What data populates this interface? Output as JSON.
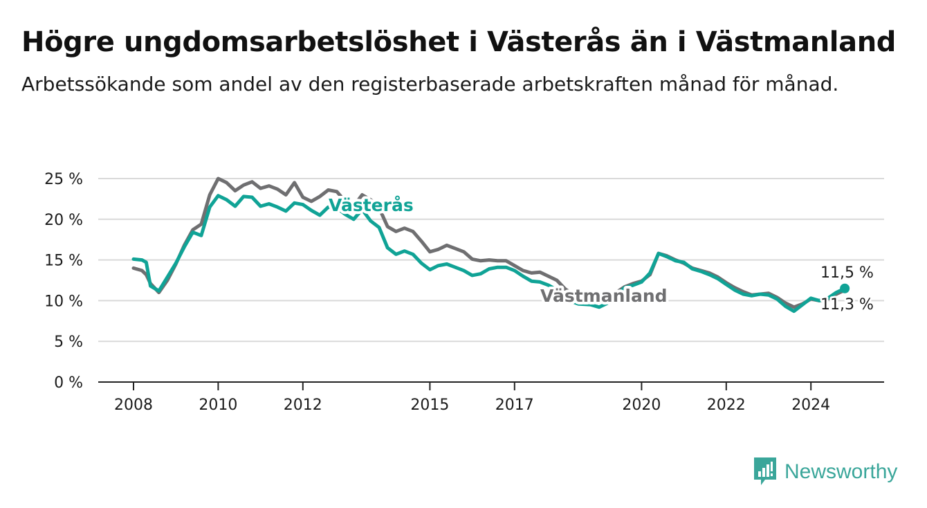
{
  "header": {
    "title": "Högre ungdomsarbetslöshet i Västerås än i Västmanland",
    "subtitle": "Arbetssökande som andel av den registerbaserade arbetskraften månad för månad."
  },
  "brand": {
    "name": "Newsworthy",
    "color": "#3aa69a",
    "icon": "newsworthy-logo-icon"
  },
  "colors": {
    "vasteras": "#10a396",
    "vastmanland": "#6f6f71",
    "grid": "#d9d9d9",
    "axis": "#222222"
  },
  "chart_data": {
    "type": "line",
    "title": "Högre ungdomsarbetslöshet i Västerås än i Västmanland",
    "subtitle": "Arbetssökande som andel av den registerbaserade arbetskraften månad för månad.",
    "xlabel": "",
    "ylabel": "",
    "ylim": [
      0,
      25
    ],
    "xlim": [
      2007.2,
      2025.9
    ],
    "y_ticks": [
      {
        "value": 0,
        "label": "0 %"
      },
      {
        "value": 5,
        "label": "5 %"
      },
      {
        "value": 10,
        "label": "10 %"
      },
      {
        "value": 15,
        "label": "15 %"
      },
      {
        "value": 20,
        "label": "20 %"
      },
      {
        "value": 25,
        "label": "25 %"
      }
    ],
    "x_ticks": [
      {
        "value": 2008,
        "label": "2008"
      },
      {
        "value": 2010,
        "label": "2010"
      },
      {
        "value": 2012,
        "label": "2012"
      },
      {
        "value": 2015,
        "label": "2015"
      },
      {
        "value": 2017,
        "label": "2017"
      },
      {
        "value": 2020,
        "label": "2020"
      },
      {
        "value": 2022,
        "label": "2022"
      },
      {
        "value": 2024,
        "label": "2024"
      }
    ],
    "grid": true,
    "legend": "inline labels",
    "end_labels": {
      "vasteras": "11,5 %",
      "vastmanland": "11,3 %"
    },
    "series": [
      {
        "name": "Västmanland",
        "key": "vastmanland",
        "color": "#6f6f71",
        "x": [
          2008.0,
          2008.2,
          2008.3,
          2008.4,
          2008.6,
          2008.8,
          2009.0,
          2009.2,
          2009.4,
          2009.6,
          2009.8,
          2010.0,
          2010.2,
          2010.4,
          2010.6,
          2010.8,
          2011.0,
          2011.2,
          2011.4,
          2011.6,
          2011.8,
          2012.0,
          2012.2,
          2012.4,
          2012.6,
          2012.8,
          2013.0,
          2013.2,
          2013.4,
          2013.6,
          2013.8,
          2014.0,
          2014.2,
          2014.4,
          2014.6,
          2014.8,
          2015.0,
          2015.2,
          2015.4,
          2015.6,
          2015.8,
          2016.0,
          2016.2,
          2016.4,
          2016.6,
          2016.8,
          2017.0,
          2017.2,
          2017.4,
          2017.6,
          2017.8,
          2018.0,
          2018.2,
          2018.5,
          2018.8,
          2019.0,
          2019.2,
          2019.4,
          2019.6,
          2019.8,
          2020.0,
          2020.2,
          2020.4,
          2020.6,
          2020.8,
          2021.0,
          2021.2,
          2021.4,
          2021.6,
          2021.8,
          2022.0,
          2022.2,
          2022.4,
          2022.6,
          2022.8,
          2023.0,
          2023.2,
          2023.4,
          2023.6,
          2023.8,
          2024.0,
          2024.2,
          2024.4,
          2024.6,
          2024.8
        ],
        "values": [
          14.0,
          13.7,
          13.2,
          12.1,
          11.0,
          12.5,
          14.5,
          16.8,
          18.7,
          19.4,
          23.0,
          25.0,
          24.5,
          23.5,
          24.2,
          24.6,
          23.8,
          24.1,
          23.7,
          23.0,
          24.5,
          22.7,
          22.2,
          22.8,
          23.6,
          23.4,
          22.2,
          21.6,
          23.0,
          22.4,
          21.4,
          19.1,
          18.5,
          18.9,
          18.5,
          17.3,
          16.0,
          16.3,
          16.8,
          16.4,
          16.0,
          15.1,
          14.9,
          15.0,
          14.9,
          14.9,
          14.3,
          13.7,
          13.4,
          13.5,
          13.0,
          12.5,
          11.4,
          10.4,
          10.0,
          9.9,
          10.4,
          11.0,
          11.7,
          12.1,
          12.4,
          13.2,
          15.8,
          15.5,
          15.0,
          14.6,
          14.0,
          13.7,
          13.4,
          12.9,
          12.2,
          11.6,
          11.1,
          10.7,
          10.8,
          10.9,
          10.4,
          9.7,
          9.2,
          9.6,
          10.2,
          10.0,
          10.2,
          10.8,
          11.3
        ]
      },
      {
        "name": "Västerås",
        "key": "vasteras",
        "color": "#10a396",
        "x": [
          2008.0,
          2008.2,
          2008.3,
          2008.4,
          2008.6,
          2008.8,
          2009.0,
          2009.2,
          2009.4,
          2009.6,
          2009.8,
          2010.0,
          2010.2,
          2010.4,
          2010.6,
          2010.8,
          2011.0,
          2011.2,
          2011.4,
          2011.6,
          2011.8,
          2012.0,
          2012.2,
          2012.4,
          2012.6,
          2012.8,
          2013.0,
          2013.2,
          2013.4,
          2013.6,
          2013.8,
          2014.0,
          2014.2,
          2014.4,
          2014.6,
          2014.8,
          2015.0,
          2015.2,
          2015.4,
          2015.6,
          2015.8,
          2016.0,
          2016.2,
          2016.4,
          2016.6,
          2016.8,
          2017.0,
          2017.2,
          2017.4,
          2017.6,
          2017.8,
          2018.0,
          2018.2,
          2018.5,
          2018.8,
          2019.0,
          2019.2,
          2019.4,
          2019.6,
          2019.8,
          2020.0,
          2020.2,
          2020.4,
          2020.6,
          2020.8,
          2021.0,
          2021.2,
          2021.4,
          2021.6,
          2021.8,
          2022.0,
          2022.2,
          2022.4,
          2022.6,
          2022.8,
          2023.0,
          2023.2,
          2023.4,
          2023.6,
          2023.8,
          2024.0,
          2024.2,
          2024.4,
          2024.6,
          2024.8
        ],
        "values": [
          15.1,
          15.0,
          14.7,
          11.8,
          11.2,
          12.9,
          14.6,
          16.6,
          18.4,
          18.0,
          21.5,
          22.9,
          22.4,
          21.6,
          22.8,
          22.7,
          21.6,
          21.9,
          21.5,
          21.0,
          22.0,
          21.8,
          21.1,
          20.5,
          21.5,
          21.4,
          20.6,
          20.0,
          21.2,
          19.8,
          19.0,
          16.5,
          15.7,
          16.1,
          15.7,
          14.6,
          13.8,
          14.3,
          14.5,
          14.1,
          13.7,
          13.1,
          13.3,
          13.9,
          14.1,
          14.1,
          13.7,
          13.0,
          12.4,
          12.3,
          11.9,
          11.3,
          10.2,
          9.6,
          9.5,
          9.2,
          9.7,
          10.6,
          11.6,
          11.9,
          12.3,
          13.4,
          15.8,
          15.4,
          14.9,
          14.7,
          13.9,
          13.6,
          13.2,
          12.7,
          12.0,
          11.3,
          10.8,
          10.6,
          10.8,
          10.7,
          10.2,
          9.3,
          8.7,
          9.5,
          10.3,
          10.0,
          10.3,
          11.0,
          11.5
        ]
      }
    ]
  }
}
